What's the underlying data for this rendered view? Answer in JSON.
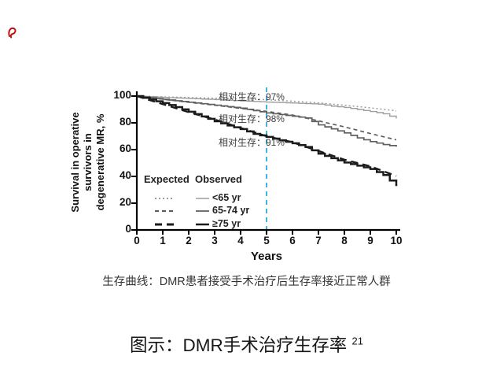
{
  "red_mark": {
    "color": "#c0100e"
  },
  "caption": "生存曲线：DMR患者接受手术治疗后生存率接近正常人群",
  "title": {
    "text": "图示：DMR手术治疗生存率 ",
    "superscript": "21"
  },
  "chart_data": {
    "type": "line",
    "title": "",
    "xlabel": "Years",
    "ylabel": "Survival in operative survivors in degenerative MR, %",
    "ylabel_lines": [
      "Survival in operative",
      "survivors in",
      "degenerative MR, %"
    ],
    "xlim": [
      0,
      10
    ],
    "ylim": [
      0,
      100
    ],
    "xticks": [
      0,
      1,
      2,
      3,
      4,
      5,
      6,
      7,
      8,
      9,
      10
    ],
    "yticks": [
      0,
      20,
      40,
      60,
      80,
      100
    ],
    "grid": false,
    "legend": {
      "expected_header": "Expected",
      "observed_header": "Observed",
      "position": "lower-left"
    },
    "reference_line": {
      "year": 5,
      "color": "#2aabdf",
      "style": "dashed"
    },
    "annotations": [
      {
        "text": "相对生存：97%",
        "year": 3.15,
        "pct": 100
      },
      {
        "text": "相对生存：98%",
        "year": 3.15,
        "pct": 83.5
      },
      {
        "text": "相对生存：91%",
        "year": 3.15,
        "pct": 66
      }
    ],
    "groups": [
      {
        "label": "<65 yr",
        "color": "#9e9e9e",
        "expected": {
          "style": "dotted",
          "dash": "2 3",
          "width": 1.5,
          "x": [
            0,
            1,
            2,
            3,
            4,
            5,
            6,
            7,
            8,
            9,
            10
          ],
          "y": [
            100,
            99.4,
            98.9,
            98.4,
            97.9,
            97.3,
            96.2,
            94.9,
            93.2,
            91.2,
            89
          ]
        },
        "observed": {
          "style": "solid",
          "width": 1.4,
          "x": [
            0,
            0.5,
            1,
            1.5,
            2,
            2.5,
            3,
            3.5,
            4,
            4.5,
            5,
            5.5,
            6,
            6.5,
            7,
            7.5,
            8,
            8.5,
            9,
            9.5,
            10
          ],
          "y": [
            100,
            99.5,
            99,
            98.6,
            98.2,
            97.8,
            97.4,
            96.9,
            96.4,
            96,
            95.5,
            95.2,
            94.8,
            94.4,
            94,
            92.5,
            91.5,
            90,
            88.5,
            86.8,
            83.2
          ]
        }
      },
      {
        "label": "65-74 yr",
        "color": "#5f5f5f",
        "expected": {
          "style": "dashed",
          "dash": "5 4",
          "width": 1.7,
          "x": [
            0,
            1,
            2,
            3,
            4,
            5,
            6,
            7,
            8,
            9,
            10
          ],
          "y": [
            100,
            97.6,
            95.4,
            93.2,
            90.8,
            88.6,
            85.8,
            81.5,
            77,
            72,
            67.3
          ]
        },
        "observed": {
          "style": "solid",
          "width": 1.7,
          "x": [
            0,
            0.5,
            1,
            1.5,
            2,
            2.5,
            3,
            3.5,
            4,
            4.5,
            5,
            5.5,
            6,
            6.5,
            7,
            7.5,
            8,
            8.5,
            9,
            9.5,
            10
          ],
          "y": [
            100,
            98.8,
            97.6,
            96.5,
            95.4,
            94.3,
            93.2,
            92.1,
            91,
            89.2,
            87.4,
            86.2,
            85,
            83.6,
            78.5,
            75.5,
            72.5,
            68.8,
            66,
            63.8,
            62.2
          ]
        }
      },
      {
        "label": "≥75 yr",
        "color": "#1b1b1b",
        "expected": {
          "style": "dashed",
          "dash": "9 6",
          "width": 2.4,
          "x": [
            0,
            1,
            2,
            3,
            4,
            5,
            6,
            7,
            8,
            9,
            10
          ],
          "y": [
            100,
            94,
            88,
            82.5,
            76.2,
            70,
            65.5,
            59,
            52.5,
            47.5,
            40.3
          ]
        },
        "observed": {
          "style": "solid",
          "width": 2.5,
          "x": [
            0,
            0.5,
            1,
            1.5,
            2,
            2.5,
            3,
            3.5,
            4,
            4.5,
            5,
            5.5,
            6,
            6.5,
            7,
            7.5,
            8,
            8.5,
            9,
            9.5,
            10
          ],
          "y": [
            100,
            97.4,
            94.8,
            91.8,
            88.3,
            84.8,
            81.2,
            78,
            75.4,
            71.8,
            69.5,
            67,
            64.8,
            62,
            57,
            53.6,
            50.4,
            48,
            45.5,
            41,
            32.8
          ]
        }
      }
    ]
  }
}
